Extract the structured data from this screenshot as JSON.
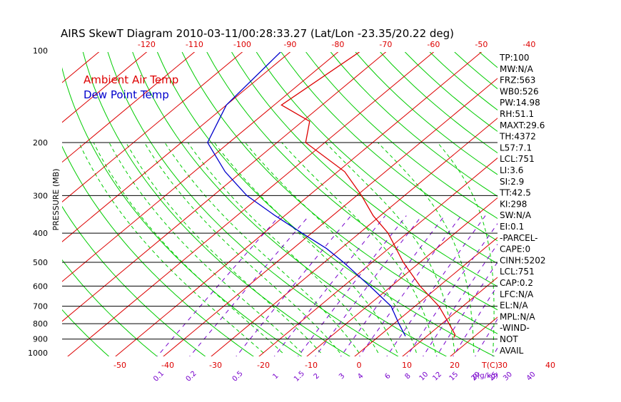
{
  "chart_data": {
    "type": "line",
    "title": "AIRS SkewT Diagram 2010-03-11/00:28:33.27 (Lat/Lon -23.35/20.22 deg)",
    "ylabel": "PRESSURE (MB)",
    "xlabel_bottom_unit": "T(C)",
    "mixing_unit": "g(g/kg)",
    "top_axis_ticks": [
      "-120",
      "-110",
      "-100",
      "-90",
      "-80",
      "-70",
      "-60",
      "-50",
      "-40"
    ],
    "bottom_axis_ticks": [
      "-50",
      "-40",
      "-30",
      "-20",
      "-10",
      "0",
      "10",
      "20",
      "30",
      "40"
    ],
    "mixing_ratio_labels": [
      "0.1",
      "0.2",
      "0.5",
      "1",
      "1.5",
      "2",
      "3",
      "4",
      "6",
      "8",
      "10",
      "12",
      "15",
      "20",
      "25",
      "30",
      "40"
    ],
    "pressure_ticks": [
      "100",
      "200",
      "300",
      "400",
      "500",
      "600",
      "700",
      "800",
      "900",
      "1000"
    ],
    "legend": [
      {
        "label": "Ambient Air Temp",
        "color": "#dd0000"
      },
      {
        "label": "Dew Point Temp",
        "color": "#0000cc"
      }
    ],
    "colors": {
      "dry_adiabat": "#00cc00",
      "moist_adiabat": "#00cc00",
      "isotherm": "#dd0000",
      "mixing_ratio": "#7700cc",
      "isobar": "#000000"
    },
    "series": [
      {
        "name": "Ambient Air Temp",
        "color": "#dd0000",
        "points": [
          [
            100,
            -75.5
          ],
          [
            150,
            -78.5
          ],
          [
            170,
            -68.5
          ],
          [
            200,
            -64
          ],
          [
            250,
            -48.5
          ],
          [
            300,
            -39
          ],
          [
            350,
            -31.5
          ],
          [
            400,
            -24
          ],
          [
            500,
            -13.5
          ],
          [
            600,
            -4
          ],
          [
            700,
            5
          ],
          [
            800,
            11.5
          ],
          [
            870,
            15.5
          ],
          [
            890,
            16
          ]
        ]
      },
      {
        "name": "Dew Point Temp",
        "color": "#0000cc",
        "points": [
          [
            100,
            -92
          ],
          [
            150,
            -90
          ],
          [
            200,
            -84.5
          ],
          [
            250,
            -73.5
          ],
          [
            300,
            -63
          ],
          [
            350,
            -52
          ],
          [
            400,
            -42
          ],
          [
            450,
            -33
          ],
          [
            500,
            -26
          ],
          [
            600,
            -14.5
          ],
          [
            700,
            -5
          ],
          [
            800,
            1
          ],
          [
            880,
            5.5
          ]
        ]
      }
    ]
  },
  "indices": [
    "TP:100",
    "MW:N/A",
    "FRZ:563",
    "WB0:526",
    "PW:14.98",
    "RH:51.1",
    "MAXT:29.6",
    "TH:4372",
    "L57:7.1",
    "LCL:751",
    "LI:3.6",
    "SI:2.9",
    "TT:42.5",
    "KI:298",
    "SW:N/A",
    "EI:0.1",
    "-PARCEL-",
    "CAPE:0",
    "CINH:5202",
    "LCL:751",
    "CAP:0.2",
    "LFC:N/A",
    "EL:N/A",
    "MPL:N/A",
    "-WIND-",
    "NOT",
    "AVAIL"
  ]
}
